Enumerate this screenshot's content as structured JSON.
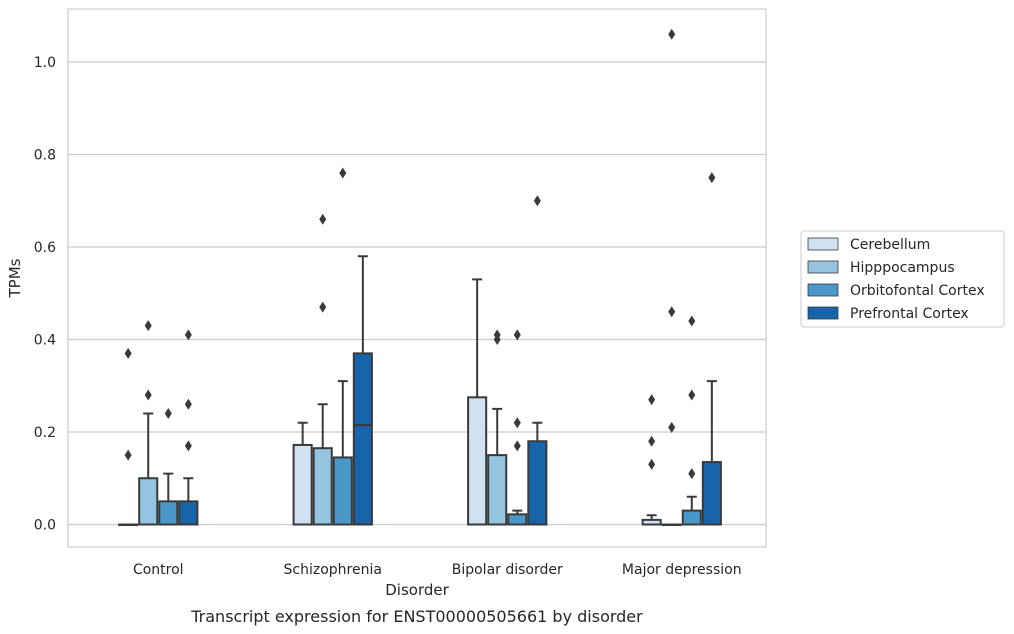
{
  "chart_data": {
    "type": "box",
    "caption": "Transcript expression for ENST00000505661 by disorder",
    "xlabel": "Disorder",
    "ylabel": "TPMs",
    "ylim": [
      -0.05,
      1.12
    ],
    "yticks": [
      "0.0",
      "0.2",
      "0.4",
      "0.6",
      "0.8",
      "1.0"
    ],
    "grid": true,
    "legend_position": "right",
    "categories": [
      "Control",
      "Schizophrenia",
      "Bipolar disorder",
      "Major depression"
    ],
    "series": [
      {
        "name": "Cerebellum",
        "color": "#d0e1f2",
        "boxes": [
          {
            "q1": 0.0,
            "median": 0.0,
            "q3": 0.0,
            "whisker_low": 0.0,
            "whisker_high": 0.0,
            "outliers": [
              0.15,
              0.37
            ]
          },
          {
            "q1": 0.0,
            "median": 0.0,
            "q3": 0.172,
            "whisker_low": 0.0,
            "whisker_high": 0.22,
            "outliers": []
          },
          {
            "q1": 0.0,
            "median": 0.0,
            "q3": 0.275,
            "whisker_low": 0.0,
            "whisker_high": 0.53,
            "outliers": []
          },
          {
            "q1": 0.0,
            "median": 0.0,
            "q3": 0.01,
            "whisker_low": 0.0,
            "whisker_high": 0.02,
            "outliers": [
              0.13,
              0.18,
              0.27
            ]
          }
        ]
      },
      {
        "name": "Hipppocampus",
        "color": "#94c4df",
        "boxes": [
          {
            "q1": 0.0,
            "median": 0.0,
            "q3": 0.1,
            "whisker_low": 0.0,
            "whisker_high": 0.24,
            "outliers": [
              0.28,
              0.43
            ]
          },
          {
            "q1": 0.0,
            "median": 0.0,
            "q3": 0.165,
            "whisker_low": 0.0,
            "whisker_high": 0.26,
            "outliers": [
              0.47,
              0.66
            ]
          },
          {
            "q1": 0.0,
            "median": 0.0,
            "q3": 0.15,
            "whisker_low": 0.0,
            "whisker_high": 0.25,
            "outliers": [
              0.4,
              0.41
            ]
          },
          {
            "q1": 0.0,
            "median": 0.0,
            "q3": 0.0,
            "whisker_low": 0.0,
            "whisker_high": 0.0,
            "outliers": [
              0.21,
              0.46,
              1.06
            ]
          }
        ]
      },
      {
        "name": "Orbitofontal Cortex",
        "color": "#4a98c9",
        "boxes": [
          {
            "q1": 0.0,
            "median": 0.0,
            "q3": 0.05,
            "whisker_low": 0.0,
            "whisker_high": 0.11,
            "outliers": [
              0.24
            ]
          },
          {
            "q1": 0.0,
            "median": 0.0,
            "q3": 0.145,
            "whisker_low": 0.0,
            "whisker_high": 0.31,
            "outliers": [
              0.76
            ]
          },
          {
            "q1": 0.0,
            "median": 0.0,
            "q3": 0.022,
            "whisker_low": 0.0,
            "whisker_high": 0.03,
            "outliers": [
              0.17,
              0.22,
              0.41
            ]
          },
          {
            "q1": 0.0,
            "median": 0.0,
            "q3": 0.03,
            "whisker_low": 0.0,
            "whisker_high": 0.06,
            "outliers": [
              0.11,
              0.28,
              0.44
            ]
          }
        ]
      },
      {
        "name": "Prefrontal Cortex",
        "color": "#1764ab",
        "boxes": [
          {
            "q1": 0.0,
            "median": 0.0,
            "q3": 0.05,
            "whisker_low": 0.0,
            "whisker_high": 0.1,
            "outliers": [
              0.17,
              0.26,
              0.41
            ]
          },
          {
            "q1": 0.0,
            "median": 0.215,
            "q3": 0.37,
            "whisker_low": 0.0,
            "whisker_high": 0.58,
            "outliers": []
          },
          {
            "q1": 0.0,
            "median": 0.0,
            "q3": 0.18,
            "whisker_low": 0.0,
            "whisker_high": 0.22,
            "outliers": [
              0.7
            ]
          },
          {
            "q1": 0.0,
            "median": 0.0,
            "q3": 0.135,
            "whisker_low": 0.0,
            "whisker_high": 0.31,
            "outliers": [
              0.75
            ]
          }
        ]
      }
    ]
  }
}
